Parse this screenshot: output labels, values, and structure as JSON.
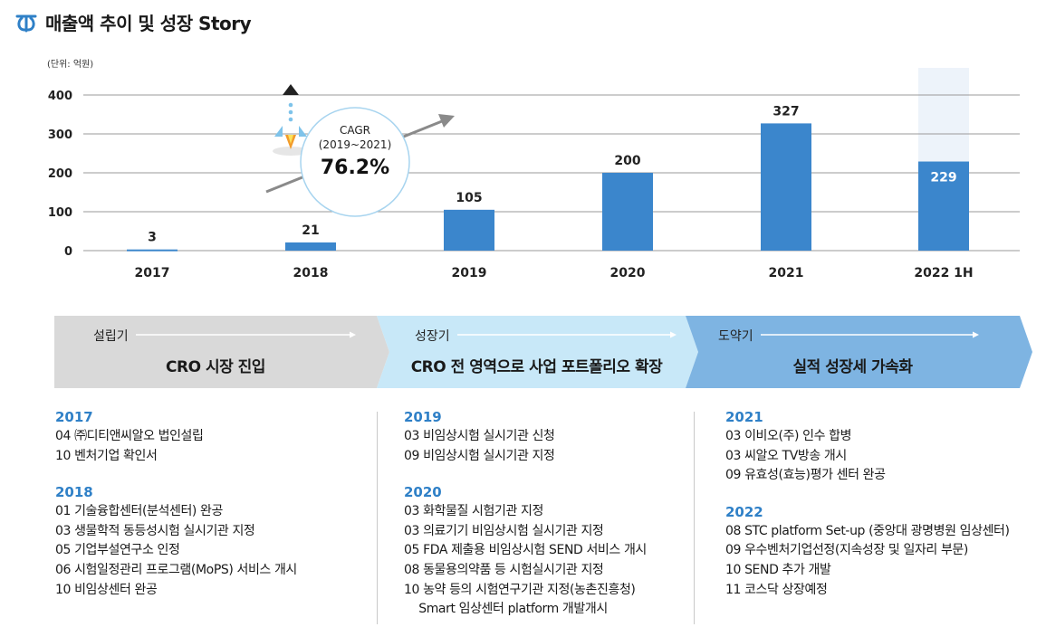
{
  "title": "매출액 추이 및 성장 Story",
  "chart_data": {
    "type": "bar",
    "unit_label": "(단위: 억원)",
    "categories": [
      "2017",
      "2018",
      "2019",
      "2020",
      "2021",
      "2022 1H"
    ],
    "values": [
      3,
      21,
      105,
      200,
      327,
      229
    ],
    "value_labels": [
      "3",
      "21",
      "105",
      "200",
      "327",
      "229"
    ],
    "ylim": [
      0,
      400
    ],
    "yticks": [
      0,
      100,
      200,
      300,
      400
    ],
    "ytick_labels": [
      "0",
      "100",
      "200",
      "300",
      "400"
    ],
    "grid": true,
    "colors": {
      "bar": "#3b86cc",
      "projection_bar": "#edf3fa",
      "grid": "#9a9a9a",
      "arrow": "#8a8a8a"
    },
    "annotation": {
      "line1": "CAGR",
      "line2": "(2019~2021)",
      "value": "76.2%"
    }
  },
  "phases": [
    {
      "label": "설립기",
      "desc": "CRO 시장 진입",
      "color": "#d9d9d9"
    },
    {
      "label": "성장기",
      "desc": "CRO 전 영역으로 사업 포트폴리오 확장",
      "color": "#c8e8f8"
    },
    {
      "label": "도약기",
      "desc": "실적 성장세 가속화",
      "color": "#7eb4e2"
    }
  ],
  "history": [
    {
      "groups": [
        {
          "year": "2017",
          "events": [
            "04 ㈜디티앤씨알오 법인설립",
            "10 벤처기업 확인서"
          ]
        },
        {
          "year": "2018",
          "events": [
            "01 기술융합센터(분석센터) 완공",
            "03 생물학적 동등성시험 실시기관 지정",
            "05 기업부설연구소 인정",
            "06 시험일정관리 프로그램(MoPS) 서비스 개시",
            "10 비임상센터 완공"
          ]
        }
      ]
    },
    {
      "groups": [
        {
          "year": "2019",
          "events": [
            "03 비임상시험 실시기관 신청",
            "09 비임상시험 실시기관 지정"
          ]
        },
        {
          "year": "2020",
          "events": [
            "03 화학물질 시험기관 지정",
            "03 의료기기 비임상시험 실시기관 지정",
            "05 FDA 제출용 비임상시험 SEND 서비스 개시",
            "08 동물용의약품 등 시험실시기관 지정",
            "10 농약 등의 시험연구기관 지정(농촌진흥청)",
            "    Smart 임상센터 platform 개발개시"
          ]
        }
      ]
    },
    {
      "groups": [
        {
          "year": "2021",
          "events": [
            "03 이비오(주) 인수 합병",
            "03 씨알오 TV방송 개시",
            "09 유효성(효능)평가 센터 완공"
          ]
        },
        {
          "year": "2022",
          "events": [
            "08 STC platform Set-up (중앙대 광명병원 임상센터)",
            "09 우수벤처기업선정(지속성장 및 일자리 부문)",
            "10 SEND 추가 개발",
            "11 코스닥 상장예정"
          ]
        }
      ]
    }
  ]
}
